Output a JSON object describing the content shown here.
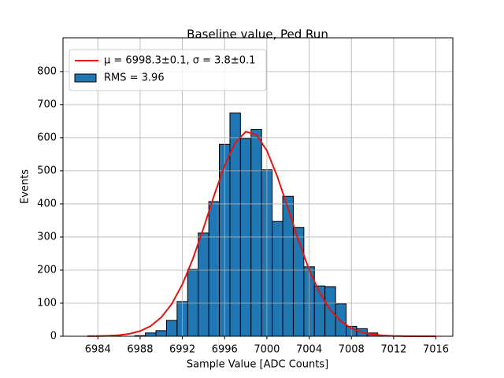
{
  "chart_data": {
    "type": "histogram",
    "title": "Baseline value, Ped Run",
    "xlabel": "Sample Value [ADC Counts]",
    "ylabel": "Events",
    "xlim": [
      6980.7,
      7017.6
    ],
    "ylim": [
      0,
      902
    ],
    "xticks": [
      6984,
      6988,
      6992,
      6996,
      7000,
      7004,
      7008,
      7012,
      7016
    ],
    "yticks": [
      0,
      100,
      200,
      300,
      400,
      500,
      600,
      700,
      800
    ],
    "grid": true,
    "legend": "upper left",
    "series": [
      {
        "name": "μ = 6998.3±0.1, σ = 3.8±0.1",
        "type": "line",
        "color": "#e8130f",
        "x": [
          6983,
          6984,
          6985,
          6986,
          6987,
          6988,
          6989,
          6990,
          6991,
          6992,
          6993,
          6994,
          6995,
          6996,
          6997,
          6998,
          6999,
          7000,
          7001,
          7002,
          7003,
          7004,
          7005,
          7006,
          7007,
          7008,
          7009,
          7010,
          7011,
          7012,
          7013,
          7014,
          7015,
          7016
        ],
        "values": [
          0.2,
          0.5,
          1.4,
          3.3,
          7.5,
          15.7,
          31.0,
          57.1,
          98.0,
          156.9,
          234.4,
          326.8,
          425.3,
          516.3,
          584.8,
          618.1,
          609.6,
          561.0,
          481.8,
          386.0,
          288.6,
          201.3,
          131.0,
          79.6,
          45.1,
          23.8,
          11.8,
          5.4,
          2.3,
          0.9,
          0.3,
          0.1,
          0,
          0
        ]
      },
      {
        "name": "RMS = 3.96",
        "type": "histogram",
        "color": "#1f77b4",
        "bins": [
          6987.5,
          6988.5,
          6989.5,
          6990.5,
          6991.5,
          6992.5,
          6993.5,
          6994.5,
          6995.5,
          6996.5,
          6997.5,
          6998.5,
          6999.5,
          7000.5,
          7001.5,
          7002.5,
          7003.5,
          7004.5,
          7005.5,
          7006.5,
          7007.5,
          7008.5,
          7009.5,
          7010.5,
          7011.5
        ],
        "values": [
          2,
          10,
          17,
          48,
          105,
          202,
          312,
          407,
          580,
          675,
          598,
          625,
          503,
          347,
          423,
          329,
          210,
          152,
          150,
          98,
          30,
          23,
          10,
          2
        ]
      }
    ]
  }
}
